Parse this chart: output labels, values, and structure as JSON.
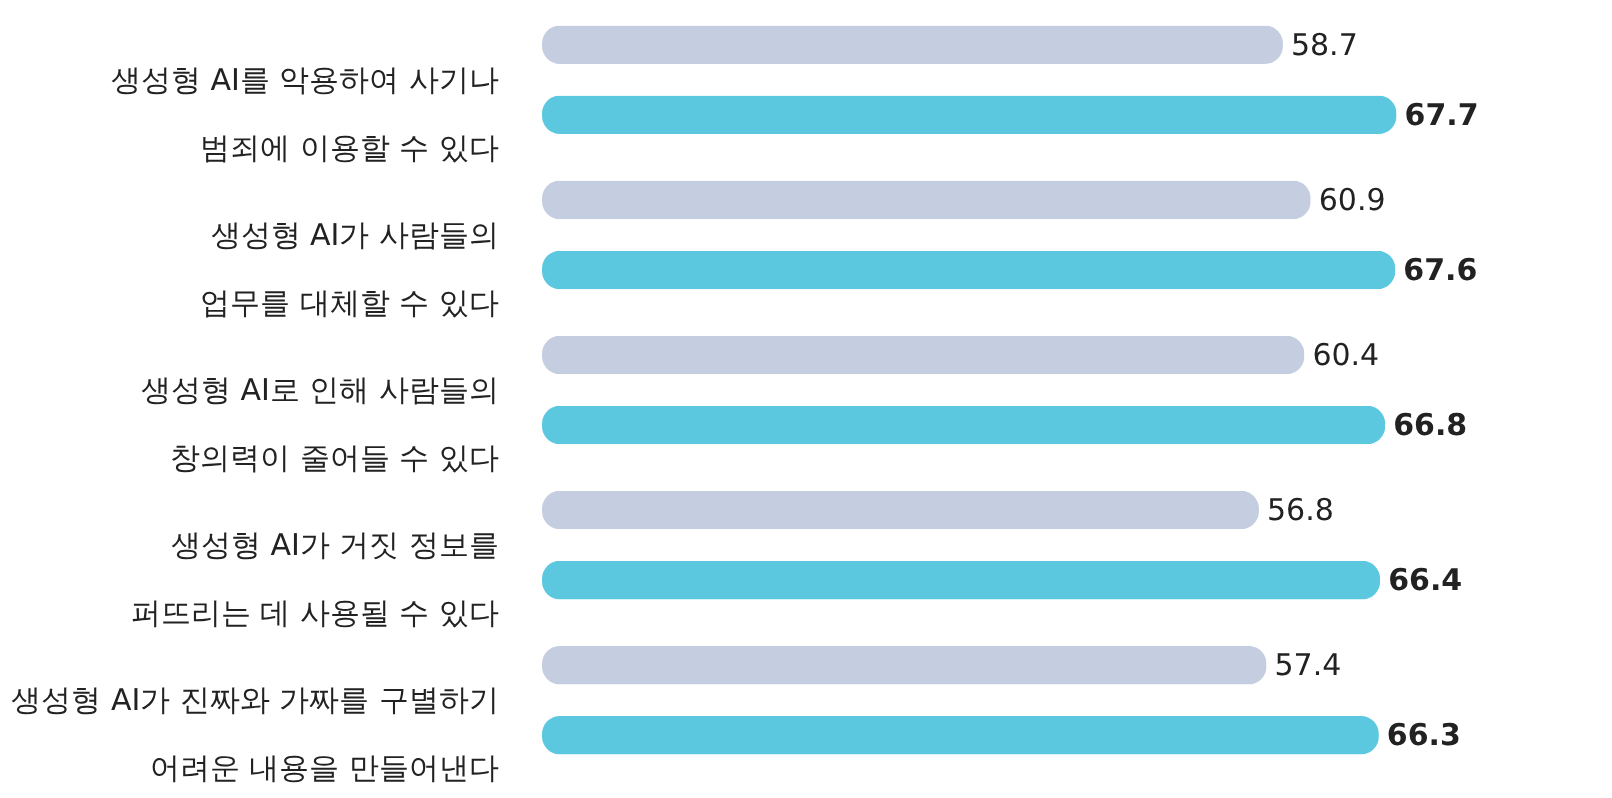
{
  "chart_data": {
    "type": "bar",
    "orientation": "horizontal",
    "data_labels": true,
    "grid": false,
    "categories": [
      "생성형 AI를 악용하여 사기나\n범죄에 이용할 수 있다",
      "생성형 AI가 사람들의\n업무를 대체할 수 있다",
      "생성형 AI로 인해 사람들의\n창의력이 줄어들 수 있다",
      "생성형 AI가 거짓 정보를\n퍼뜨리는 데 사용될 수 있다",
      "생성형 AI가 진짜와 가짜를 구별하기\n어려운 내용을 만들어낸다"
    ],
    "series": [
      {
        "color": "#c5cde0",
        "values": [
          58.7,
          60.9,
          60.4,
          56.8,
          57.4
        ]
      },
      {
        "color": "#5bc8e0",
        "values": [
          67.7,
          67.6,
          66.8,
          66.4,
          66.3
        ]
      }
    ]
  }
}
